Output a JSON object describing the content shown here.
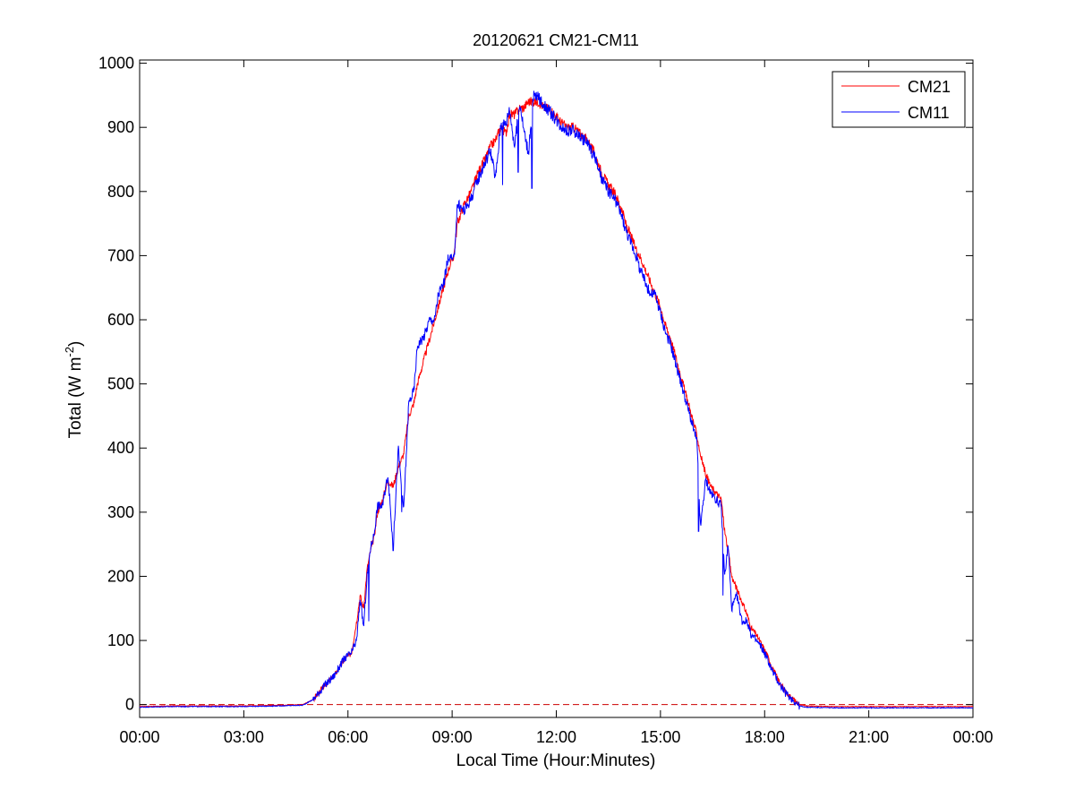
{
  "chart_data": {
    "type": "line",
    "title": "20120621 CM21-CM11",
    "xlabel": "Local Time (Hour:Minutes)",
    "ylabel": {
      "text": "Total (W m",
      "sup": "-2",
      "close": ")"
    },
    "x_unit": "hours",
    "xlim": [
      0,
      24
    ],
    "ylim": [
      -20,
      1005
    ],
    "x_ticks": [
      {
        "value": 0,
        "label": "00:00"
      },
      {
        "value": 3,
        "label": "03:00"
      },
      {
        "value": 6,
        "label": "06:00"
      },
      {
        "value": 9,
        "label": "09:00"
      },
      {
        "value": 12,
        "label": "12:00"
      },
      {
        "value": 15,
        "label": "15:00"
      },
      {
        "value": 18,
        "label": "18:00"
      },
      {
        "value": 21,
        "label": "21:00"
      },
      {
        "value": 24,
        "label": "00:00"
      }
    ],
    "y_ticks": [
      {
        "value": 0,
        "label": "0"
      },
      {
        "value": 100,
        "label": "100"
      },
      {
        "value": 200,
        "label": "200"
      },
      {
        "value": 300,
        "label": "300"
      },
      {
        "value": 400,
        "label": "400"
      },
      {
        "value": 500,
        "label": "500"
      },
      {
        "value": 600,
        "label": "600"
      },
      {
        "value": 700,
        "label": "700"
      },
      {
        "value": 800,
        "label": "800"
      },
      {
        "value": 900,
        "label": "900"
      },
      {
        "value": 1000,
        "label": "1000"
      }
    ],
    "grid": false,
    "legend": "top-right",
    "reference_line": {
      "y": 0,
      "color": "#cc0000",
      "style": "dashed"
    },
    "series": [
      {
        "name": "CM21",
        "color": "#ff0000",
        "x": [
          0,
          1,
          2,
          3,
          4,
          4.7,
          5.0,
          5.3,
          5.6,
          5.9,
          6.1,
          6.25,
          6.35,
          6.45,
          6.55,
          6.65,
          6.75,
          6.85,
          7.0,
          7.15,
          7.3,
          7.45,
          7.6,
          7.75,
          7.9,
          8.0,
          8.2,
          8.35,
          8.5,
          8.6,
          8.75,
          8.9,
          9.05,
          9.15,
          9.35,
          9.55,
          9.75,
          9.95,
          10.1,
          10.25,
          10.4,
          10.55,
          10.65,
          10.8,
          10.95,
          11.05,
          11.2,
          11.35,
          11.5,
          11.65,
          11.8,
          11.95,
          12.1,
          12.3,
          12.5,
          12.7,
          12.9,
          13.1,
          13.3,
          13.5,
          13.65,
          13.75,
          13.9,
          14.0,
          14.15,
          14.3,
          14.4,
          14.55,
          14.7,
          14.85,
          15.0,
          15.15,
          15.3,
          15.45,
          15.6,
          15.75,
          15.85,
          15.95,
          16.05,
          16.15,
          16.3,
          16.45,
          16.6,
          16.75,
          16.85,
          16.95,
          17.05,
          17.2,
          17.35,
          17.5,
          17.6,
          17.75,
          17.9,
          18.05,
          18.2,
          18.4,
          18.6,
          18.8,
          19.0,
          19.2,
          20,
          21,
          22,
          23,
          24
        ],
        "values": [
          -3,
          -2,
          -2,
          -2,
          -1,
          0,
          8,
          28,
          45,
          70,
          80,
          130,
          170,
          150,
          210,
          240,
          260,
          300,
          320,
          350,
          340,
          370,
          390,
          450,
          470,
          500,
          540,
          570,
          600,
          620,
          650,
          680,
          700,
          750,
          780,
          800,
          830,
          850,
          870,
          880,
          900,
          890,
          920,
          920,
          930,
          930,
          940,
          940,
          940,
          930,
          930,
          920,
          910,
          900,
          900,
          890,
          880,
          860,
          830,
          810,
          800,
          790,
          770,
          750,
          730,
          710,
          700,
          680,
          660,
          640,
          620,
          590,
          570,
          540,
          510,
          480,
          460,
          440,
          420,
          390,
          360,
          340,
          330,
          320,
          270,
          240,
          200,
          180,
          160,
          140,
          120,
          110,
          95,
          80,
          60,
          38,
          20,
          10,
          0,
          -2,
          -3,
          -3,
          -3,
          -3,
          -3
        ],
        "noise": 2
      },
      {
        "name": "CM11",
        "color": "#0000ff",
        "x": [
          0,
          1,
          2,
          3,
          4,
          4.7,
          5.0,
          5.3,
          5.6,
          5.9,
          6.1,
          6.25,
          6.35,
          6.45,
          6.55,
          6.65,
          6.75,
          6.85,
          7.0,
          7.15,
          7.3,
          7.45,
          7.6,
          7.75,
          7.9,
          8.0,
          8.2,
          8.35,
          8.5,
          8.6,
          8.75,
          8.9,
          9.05,
          9.15,
          9.35,
          9.55,
          9.75,
          9.95,
          10.1,
          10.25,
          10.4,
          10.55,
          10.65,
          10.8,
          10.95,
          11.05,
          11.2,
          11.35,
          11.5,
          11.65,
          11.8,
          11.95,
          12.1,
          12.3,
          12.5,
          12.7,
          12.9,
          13.1,
          13.3,
          13.5,
          13.65,
          13.75,
          13.9,
          14.0,
          14.15,
          14.3,
          14.4,
          14.55,
          14.7,
          14.85,
          15.0,
          15.15,
          15.3,
          15.45,
          15.6,
          15.75,
          15.85,
          15.95,
          16.05,
          16.15,
          16.3,
          16.45,
          16.6,
          16.75,
          16.85,
          16.95,
          17.05,
          17.2,
          17.35,
          17.5,
          17.6,
          17.75,
          17.9,
          18.05,
          18.2,
          18.4,
          18.6,
          18.8,
          19.0,
          19.2,
          20,
          21,
          22,
          23,
          24
        ],
        "values": [
          -4,
          -3,
          -3,
          -3,
          -2,
          -1,
          8,
          28,
          45,
          72,
          80,
          100,
          165,
          120,
          200,
          245,
          265,
          310,
          310,
          360,
          245,
          400,
          300,
          470,
          490,
          560,
          575,
          600,
          600,
          640,
          655,
          700,
          690,
          780,
          770,
          790,
          820,
          845,
          865,
          820,
          905,
          905,
          930,
          870,
          940,
          900,
          860,
          950,
          945,
          935,
          925,
          915,
          905,
          895,
          895,
          885,
          875,
          855,
          820,
          800,
          790,
          780,
          760,
          740,
          720,
          700,
          680,
          660,
          640,
          640,
          610,
          580,
          560,
          530,
          500,
          470,
          450,
          430,
          410,
          275,
          350,
          330,
          320,
          310,
          200,
          250,
          150,
          170,
          130,
          130,
          110,
          100,
          90,
          75,
          55,
          35,
          18,
          8,
          -2,
          -4,
          -5,
          -5,
          -5,
          -5,
          -5
        ],
        "noise": 3,
        "dips": [
          {
            "x": 6.6,
            "y": 130
          },
          {
            "x": 7.3,
            "y": 240
          },
          {
            "x": 7.55,
            "y": 300
          },
          {
            "x": 10.45,
            "y": 810
          },
          {
            "x": 11.3,
            "y": 805
          },
          {
            "x": 10.9,
            "y": 830
          },
          {
            "x": 14.65,
            "y": 655
          },
          {
            "x": 16.1,
            "y": 270
          },
          {
            "x": 16.8,
            "y": 170
          }
        ]
      }
    ]
  }
}
